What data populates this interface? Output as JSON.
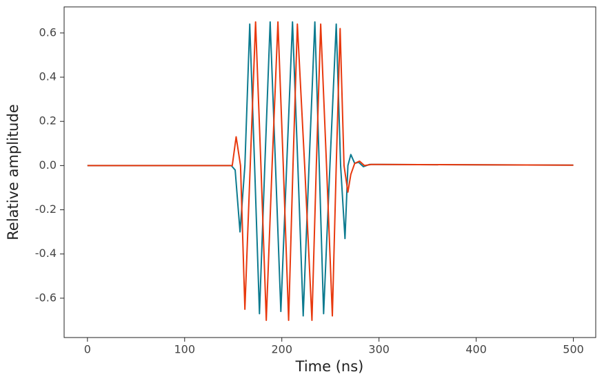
{
  "chart_data": {
    "type": "line",
    "x_label": "Time (ns)",
    "y_label": "Relative amplitude",
    "series": [
      {
        "color": "#0b7a8f",
        "x": [
          0,
          148,
          152,
          157,
          162,
          167,
          172,
          177,
          182.5,
          188,
          193.5,
          199,
          205,
          211,
          216.5,
          222,
          228,
          234,
          238.5,
          243,
          249.5,
          256,
          260.5,
          265,
          268,
          271,
          275,
          279,
          284,
          290,
          300,
          500
        ],
        "values": [
          0,
          0,
          -0.02,
          -0.3,
          0,
          0.64,
          0,
          -0.67,
          0,
          0.65,
          0,
          -0.66,
          0,
          0.65,
          0,
          -0.68,
          0,
          0.65,
          0,
          -0.67,
          0,
          0.64,
          0,
          -0.33,
          0,
          0.05,
          0.01,
          0.015,
          -0.005,
          0.005,
          0.005,
          0.002
        ]
      },
      {
        "color": "#e8380d",
        "x": [
          0,
          149,
          153,
          157.5,
          162,
          167.5,
          173,
          178.5,
          184,
          190,
          196,
          201.5,
          207,
          211.5,
          216,
          223.5,
          231,
          235.5,
          240,
          246,
          252,
          256,
          260,
          264,
          268,
          271,
          275,
          280,
          285,
          292,
          300,
          500
        ],
        "values": [
          0,
          0,
          0.13,
          0,
          -0.65,
          0,
          0.65,
          0,
          -0.7,
          0,
          0.65,
          0,
          -0.7,
          0,
          0.64,
          0,
          -0.7,
          0,
          0.64,
          0,
          -0.68,
          0,
          0.62,
          0,
          -0.12,
          -0.04,
          0.01,
          0.02,
          0,
          0.005,
          0.005,
          0.002
        ]
      }
    ],
    "xlim": [
      -24,
      523
    ],
    "ylim": [
      -0.778,
      0.718
    ],
    "xticks": [
      0,
      100,
      200,
      300,
      400,
      500
    ],
    "yticks": [
      -0.6,
      -0.4,
      -0.2,
      {
        "value": 0,
        "label": "0.0"
      },
      0.2,
      0.4,
      0.6
    ],
    "grid": false
  }
}
